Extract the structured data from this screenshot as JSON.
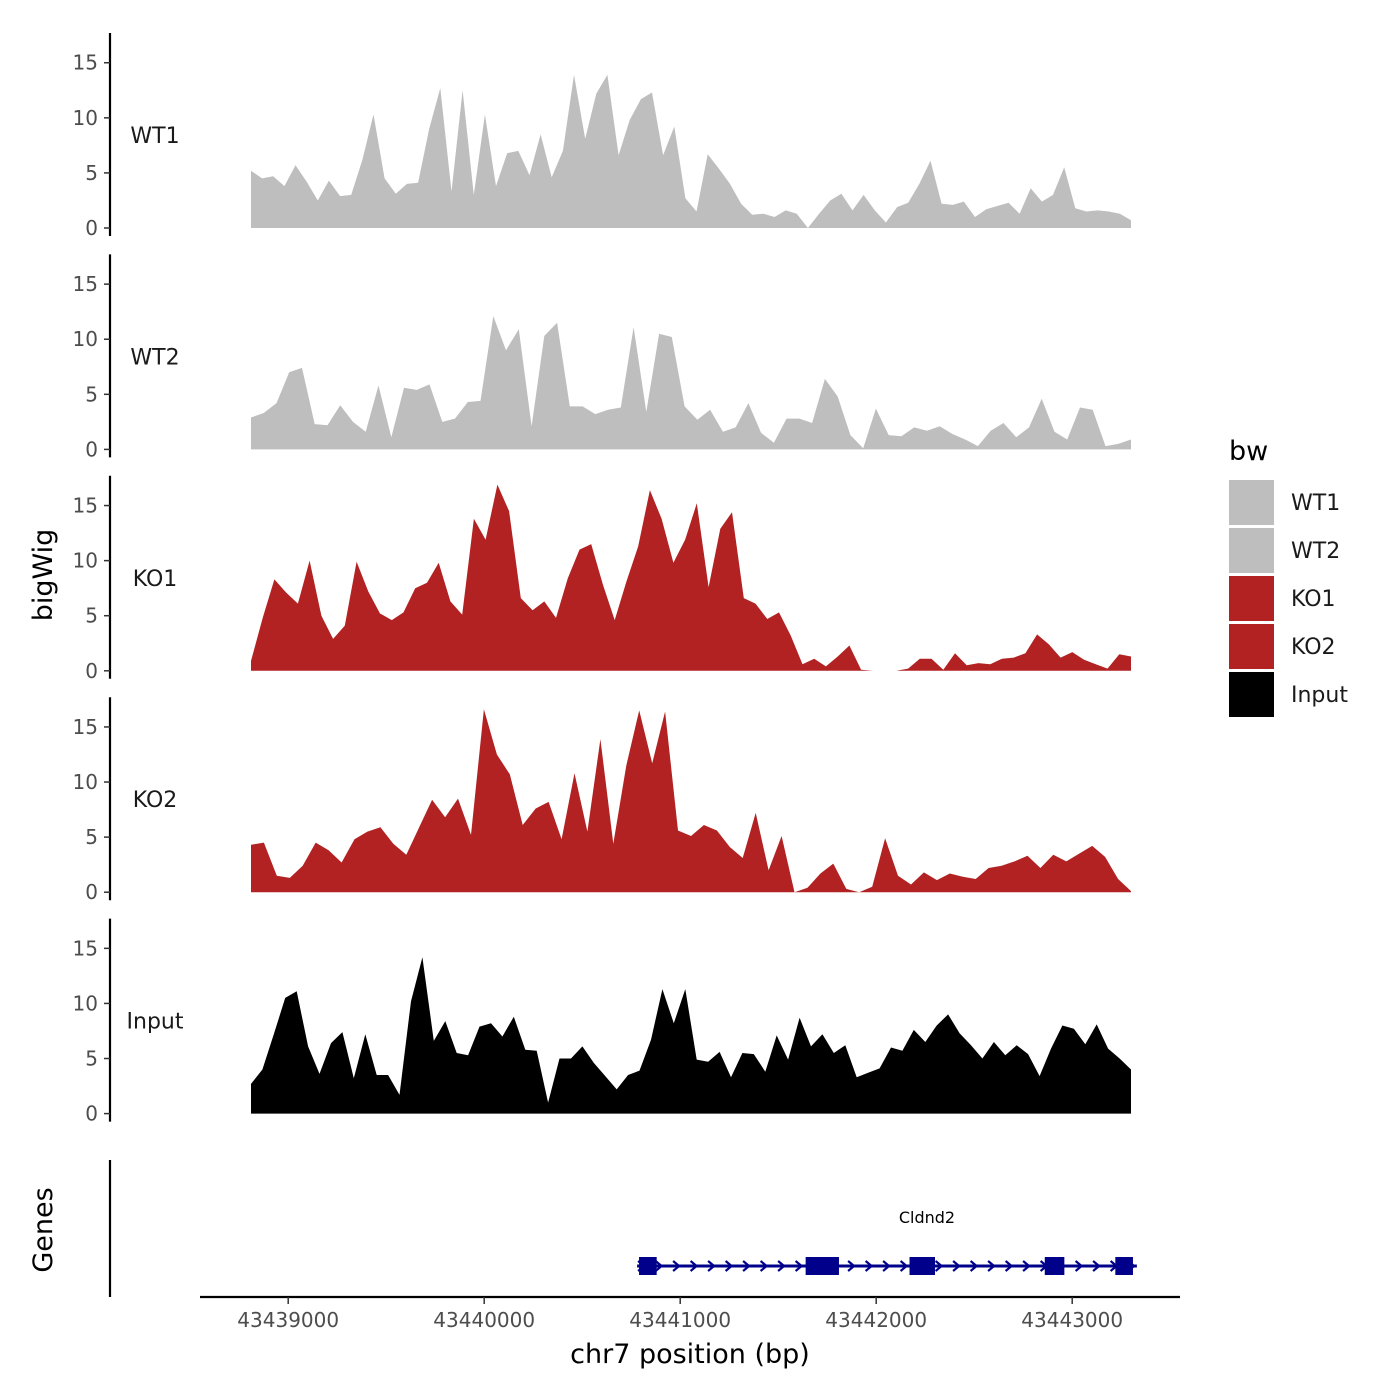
{
  "chart_data": {
    "type": "area",
    "ylabel": "bigWig",
    "genes_label": "Genes",
    "xlabel": "chr7 position (bp)",
    "xlim": [
      43438550,
      43443550
    ],
    "x_start": 43438810,
    "x_end": 43443300,
    "x_ticks": [
      43439000,
      43440000,
      43441000,
      43442000,
      43443000
    ],
    "x_tick_labels": [
      "43439000",
      "43440000",
      "43441000",
      "43442000",
      "43443000"
    ],
    "ylim": [
      0,
      17.7
    ],
    "y_ticks": [
      0,
      5,
      10,
      15
    ],
    "y_tick_labels": [
      "0",
      "5",
      "10",
      "15"
    ],
    "legend": {
      "title": "bw",
      "entries": [
        {
          "label": "WT1",
          "color": "#bebebe"
        },
        {
          "label": "WT2",
          "color": "#bebebe"
        },
        {
          "label": "KO1",
          "color": "#b22222"
        },
        {
          "label": "KO2",
          "color": "#b22222"
        },
        {
          "label": "Input",
          "color": "#000000"
        }
      ]
    },
    "tracks": [
      {
        "name": "WT1",
        "color": "#bebebe",
        "values": [
          5.2,
          4.5,
          4.7,
          3.8,
          5.7,
          4.2,
          2.5,
          4.3,
          2.9,
          3.0,
          6.2,
          10.3,
          4.5,
          3.1,
          4.0,
          4.1,
          9.0,
          12.7,
          3.3,
          12.5,
          3.0,
          10.3,
          3.8,
          6.8,
          7.0,
          4.8,
          8.5,
          4.6,
          7.0,
          13.9,
          8.1,
          12.2,
          13.9,
          6.6,
          9.8,
          11.7,
          12.3,
          6.6,
          9.2,
          2.7,
          1.5,
          6.7,
          5.4,
          4.0,
          2.2,
          1.2,
          1.3,
          1.0,
          1.6,
          1.3,
          -0.5,
          1.3,
          2.5,
          3.1,
          1.6,
          3.0,
          1.6,
          0.5,
          1.9,
          2.3,
          4.0,
          6.1,
          2.2,
          2.1,
          2.4,
          1.0,
          1.7,
          2.0,
          2.3,
          1.3,
          3.6,
          2.4,
          3.0,
          5.5,
          1.8,
          1.5,
          1.6,
          1.5,
          1.3,
          0.7
        ]
      },
      {
        "name": "WT2",
        "color": "#bebebe",
        "values": [
          2.9,
          3.3,
          4.2,
          7.0,
          7.4,
          2.3,
          2.2,
          4.0,
          2.5,
          1.6,
          5.8,
          1.1,
          5.6,
          5.4,
          5.9,
          2.5,
          2.8,
          4.3,
          4.4,
          12.1,
          9.0,
          10.9,
          2.1,
          10.3,
          11.5,
          3.9,
          3.9,
          3.2,
          3.6,
          3.8,
          11.1,
          3.4,
          10.5,
          10.2,
          3.9,
          2.7,
          3.6,
          1.6,
          2.0,
          4.2,
          1.5,
          0.6,
          2.8,
          2.8,
          2.4,
          6.4,
          4.8,
          1.3,
          0.1,
          3.7,
          1.3,
          1.2,
          2.0,
          1.7,
          2.1,
          1.4,
          0.9,
          0.3,
          1.7,
          2.4,
          1.1,
          2.0,
          4.6,
          1.6,
          0.9,
          3.8,
          3.6,
          0.3,
          0.5,
          0.9
        ]
      },
      {
        "name": "KO1",
        "color": "#b22222",
        "values": [
          0.9,
          4.8,
          8.3,
          7.1,
          6.1,
          10.0,
          5.0,
          2.9,
          4.1,
          9.9,
          7.2,
          5.2,
          4.6,
          5.3,
          7.5,
          8.0,
          9.8,
          6.3,
          5.1,
          13.8,
          11.9,
          16.9,
          14.5,
          6.6,
          5.5,
          6.3,
          4.8,
          8.4,
          11.0,
          11.5,
          7.8,
          4.6,
          8.1,
          11.3,
          16.4,
          13.8,
          9.8,
          11.9,
          15.2,
          7.6,
          12.9,
          14.4,
          6.6,
          6.1,
          4.7,
          5.3,
          3.2,
          0.6,
          1.1,
          0.4,
          1.3,
          2.3,
          0.1,
          -0.5,
          -0.5,
          -0.5,
          0.2,
          1.1,
          1.1,
          0.1,
          1.6,
          0.5,
          0.7,
          0.6,
          1.1,
          1.2,
          1.6,
          3.3,
          2.4,
          1.2,
          1.7,
          1.0,
          0.6,
          0.2,
          1.5,
          1.3
        ]
      },
      {
        "name": "KO2",
        "color": "#b22222",
        "values": [
          4.3,
          4.5,
          1.5,
          1.3,
          2.4,
          4.5,
          3.8,
          2.7,
          4.8,
          5.5,
          5.9,
          4.4,
          3.4,
          5.9,
          8.4,
          6.8,
          8.5,
          5.2,
          16.6,
          12.5,
          10.7,
          6.1,
          7.6,
          8.2,
          4.8,
          10.8,
          5.5,
          13.9,
          4.4,
          11.5,
          16.5,
          11.7,
          16.4,
          5.6,
          5.1,
          6.1,
          5.6,
          4.1,
          3.1,
          7.2,
          2.0,
          5.1,
          -0.5,
          0.4,
          1.7,
          2.6,
          0.3,
          -0.5,
          0.5,
          4.9,
          1.5,
          0.7,
          1.8,
          1.1,
          1.7,
          1.4,
          1.2,
          2.2,
          2.4,
          2.8,
          3.3,
          2.2,
          3.4,
          2.8,
          3.5,
          4.2,
          3.2,
          1.2,
          0.1
        ]
      },
      {
        "name": "Input",
        "color": "#000000",
        "values": [
          2.7,
          4.0,
          7.2,
          10.5,
          11.1,
          6.1,
          3.6,
          6.4,
          7.4,
          3.2,
          7.2,
          3.5,
          3.5,
          1.7,
          10.2,
          14.2,
          6.6,
          8.4,
          5.5,
          5.3,
          7.9,
          8.2,
          7.0,
          8.8,
          5.8,
          5.7,
          1.0,
          5.0,
          5.0,
          6.1,
          4.6,
          3.4,
          2.2,
          3.5,
          3.9,
          6.7,
          11.3,
          8.2,
          11.3,
          4.9,
          4.7,
          5.6,
          3.3,
          5.5,
          5.4,
          3.8,
          7.1,
          4.9,
          8.7,
          6.1,
          7.2,
          5.5,
          6.2,
          3.3,
          3.7,
          4.1,
          6.0,
          5.7,
          7.6,
          6.5,
          8.0,
          9.0,
          7.3,
          6.2,
          5.0,
          6.5,
          5.3,
          6.2,
          5.4,
          3.4,
          5.9,
          8.0,
          7.7,
          6.3,
          8.1,
          5.9,
          5.0,
          4.0
        ]
      }
    ],
    "gene": {
      "name": "Cldnd2",
      "strand": "+",
      "color": "#00008b",
      "start": 43440780,
      "end": 43443330,
      "exons": [
        [
          43440790,
          43440880
        ],
        [
          43441640,
          43441810
        ],
        [
          43442170,
          43442300
        ],
        [
          43442860,
          43442960
        ],
        [
          43443220,
          43443310
        ]
      ]
    }
  }
}
